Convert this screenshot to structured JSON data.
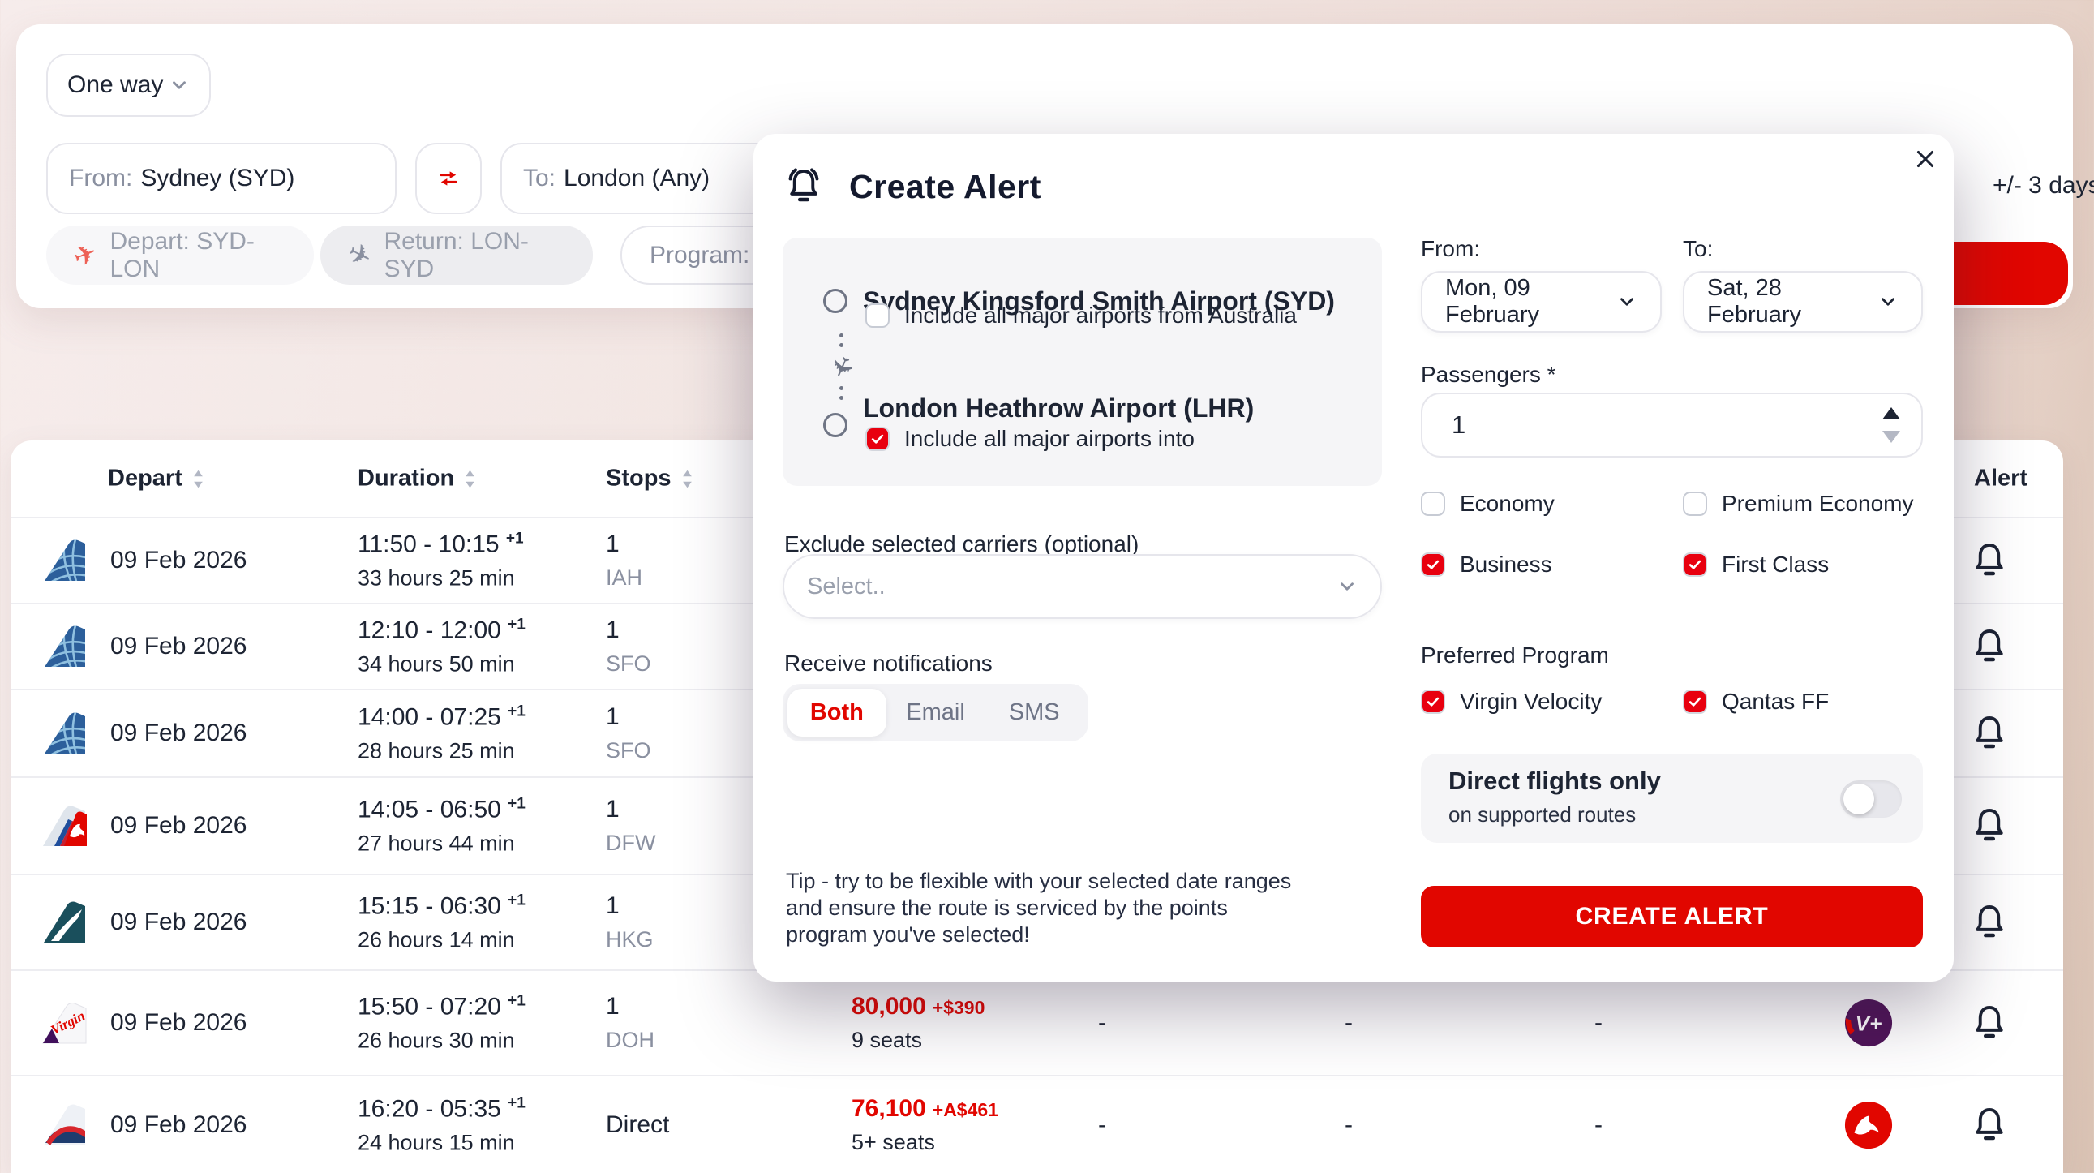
{
  "search_bar": {
    "trip_type": "One way",
    "from_label": "From:",
    "from_value": "Sydney (SYD)",
    "to_label": "To:",
    "to_value": "London (Any)",
    "depart_chip": "Depart: SYD-LON",
    "return_chip": "Return: LON-SYD",
    "program_chip": "Program: A",
    "flex_days": "+/- 3 days"
  },
  "modal": {
    "title": "Create Alert",
    "origin": {
      "name": "Sydney Kingsford Smith Airport (SYD)",
      "checkbox_label": "Include all major airports from Australia",
      "checked": false
    },
    "destination": {
      "name": "London Heathrow Airport (LHR)",
      "checkbox_label": "Include all major airports into",
      "checked": true
    },
    "from_label": "From:",
    "from_value": "Mon, 09 February",
    "to_label": "To:",
    "to_value": "Sat, 28 February",
    "passengers_label": "Passengers *",
    "passengers_value": "1",
    "cabins": [
      {
        "label": "Economy",
        "checked": false
      },
      {
        "label": "Premium Economy",
        "checked": false
      },
      {
        "label": "Business",
        "checked": true
      },
      {
        "label": "First Class",
        "checked": true
      }
    ],
    "exclude_label": "Exclude selected carriers (optional)",
    "exclude_placeholder": "Select..",
    "notifications_label": "Receive notifications",
    "notification_options": [
      "Both",
      "Email",
      "SMS"
    ],
    "notification_selected": "Both",
    "preferred_program_label": "Preferred Program",
    "programs": [
      {
        "label": "Virgin Velocity",
        "checked": true
      },
      {
        "label": "Qantas FF",
        "checked": true
      }
    ],
    "direct_title": "Direct flights only",
    "direct_subtitle": "on supported routes",
    "direct_on": false,
    "tip": "Tip - try to be flexible with your selected date ranges and ensure the route is serviced by the points program you've selected!",
    "submit_label": "CREATE ALERT"
  },
  "table": {
    "headers": [
      "Depart",
      "Duration",
      "Stops",
      "Alert"
    ],
    "dash": "-",
    "rows": [
      {
        "airline": "united",
        "airline_name": "United Airlines",
        "date": "09 Feb 2026",
        "times": "11:50 - 10:15",
        "plus": "+1",
        "duration": "33 hours 25 min",
        "stops": "1",
        "stop_code": "IAH"
      },
      {
        "airline": "united",
        "airline_name": "United Airlines",
        "date": "09 Feb 2026",
        "times": "12:10 - 12:00",
        "plus": "+1",
        "duration": "34 hours 50 min",
        "stops": "1",
        "stop_code": "SFO"
      },
      {
        "airline": "united",
        "airline_name": "United Airlines",
        "date": "09 Feb 2026",
        "times": "14:00 - 07:25",
        "plus": "+1",
        "duration": "28 hours 25 min",
        "stops": "1",
        "stop_code": "SFO"
      },
      {
        "airline": "qantas-aa",
        "airline_name": "Qantas / American",
        "date": "09 Feb 2026",
        "times": "14:05 - 06:50",
        "plus": "+1",
        "duration": "27 hours 44 min",
        "stops": "1",
        "stop_code": "DFW"
      },
      {
        "airline": "cathay",
        "airline_name": "Cathay Pacific",
        "date": "09 Feb 2026",
        "times": "15:15 - 06:30",
        "plus": "+1",
        "duration": "26 hours 14 min",
        "stops": "1",
        "stop_code": "HKG"
      },
      {
        "airline": "virgin",
        "airline_name": "Virgin",
        "date": "09 Feb 2026",
        "times": "15:50 - 07:20",
        "plus": "+1",
        "duration": "26 hours 30 min",
        "stops": "1",
        "stop_code": "DOH",
        "points": "80,000",
        "fee": "+$390",
        "seats": "9 seats",
        "badge": "velocity",
        "badge_text": "V+"
      },
      {
        "airline": "ba",
        "airline_name": "British Airways",
        "date": "09 Feb 2026",
        "times": "16:20 - 05:35",
        "plus": "+1",
        "duration": "24 hours 15 min",
        "stops": "Direct",
        "stop_code": "",
        "points": "76,100",
        "fee": "+A$461",
        "seats": "5+ seats",
        "badge": "qantas",
        "badge_text": ""
      }
    ]
  },
  "colors": {
    "accent_red": "#e10600",
    "checkbox_red": "#e8000f",
    "dark_text": "#1d2433",
    "grey_text": "#8a90a0",
    "panel_grey": "#f5f5f7",
    "velocity_purple": "#4f1458"
  }
}
